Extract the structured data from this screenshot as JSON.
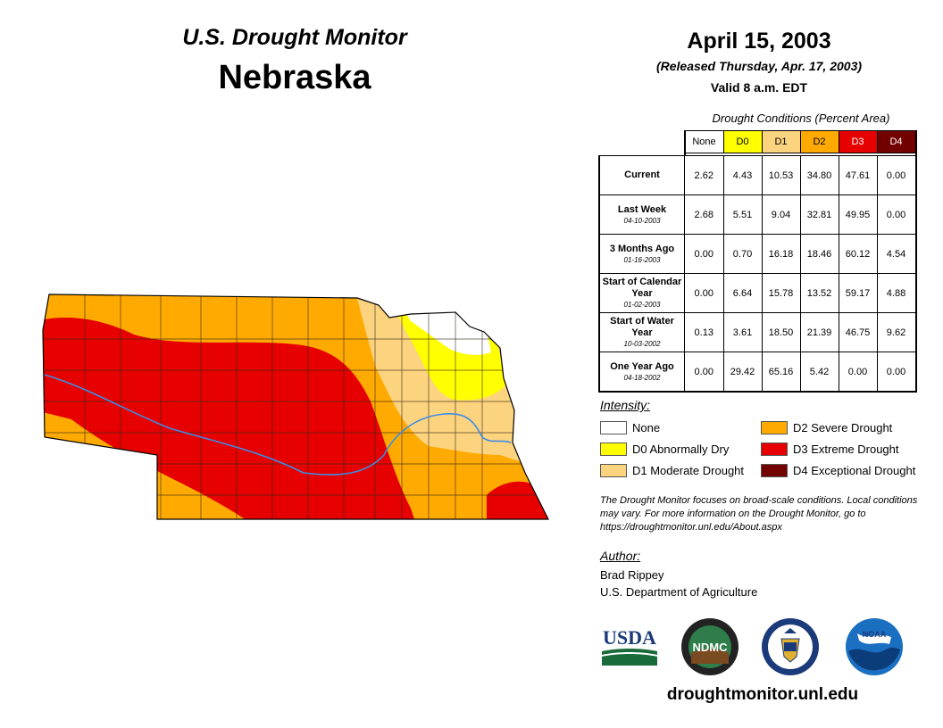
{
  "header": {
    "title": "U.S. Drought Monitor",
    "state": "Nebraska",
    "date": "April 15, 2003",
    "released": "(Released Thursday, Apr. 17, 2003)",
    "valid": "Valid 8 a.m. EDT"
  },
  "table": {
    "caption": "Drought Conditions (Percent Area)",
    "columns": [
      "None",
      "D0",
      "D1",
      "D2",
      "D3",
      "D4"
    ],
    "rows": [
      {
        "label": "Current",
        "sublabel": "",
        "values": [
          "2.62",
          "4.43",
          "10.53",
          "34.80",
          "47.61",
          "0.00"
        ]
      },
      {
        "label": "Last Week",
        "sublabel": "04-10-2003",
        "values": [
          "2.68",
          "5.51",
          "9.04",
          "32.81",
          "49.95",
          "0.00"
        ]
      },
      {
        "label": "3 Months Ago",
        "sublabel": "01-16-2003",
        "values": [
          "0.00",
          "0.70",
          "16.18",
          "18.46",
          "60.12",
          "4.54"
        ]
      },
      {
        "label": "Start of Calendar Year",
        "sublabel": "01-02-2003",
        "values": [
          "0.00",
          "6.64",
          "15.78",
          "13.52",
          "59.17",
          "4.88"
        ]
      },
      {
        "label": "Start of Water Year",
        "sublabel": "10-03-2002",
        "values": [
          "0.13",
          "3.61",
          "18.50",
          "21.39",
          "46.75",
          "9.62"
        ]
      },
      {
        "label": "One Year Ago",
        "sublabel": "04-18-2002",
        "values": [
          "0.00",
          "29.42",
          "65.16",
          "5.42",
          "0.00",
          "0.00"
        ]
      }
    ]
  },
  "legend": {
    "title": "Intensity:",
    "items": [
      {
        "label": "None",
        "color": "#ffffff"
      },
      {
        "label": "D0 Abnormally Dry",
        "color": "#ffff00"
      },
      {
        "label": "D1 Moderate Drought",
        "color": "#fcd37f"
      },
      {
        "label": "D2 Severe Drought",
        "color": "#ffaa00"
      },
      {
        "label": "D3 Extreme Drought",
        "color": "#e60000"
      },
      {
        "label": "D4 Exceptional Drought",
        "color": "#730000"
      }
    ]
  },
  "note": "The Drought Monitor focuses on broad-scale conditions. Local conditions may vary. For more information on the Drought Monitor, go to https://droughtmonitor.unl.edu/About.aspx",
  "author": {
    "title": "Author:",
    "name": "Brad Rippey",
    "org": "U.S. Department of Agriculture"
  },
  "logos": {
    "usda": "USDA",
    "ndmc": "NDMC",
    "noaa": "NOAA"
  },
  "website": "droughtmonitor.unl.edu"
}
